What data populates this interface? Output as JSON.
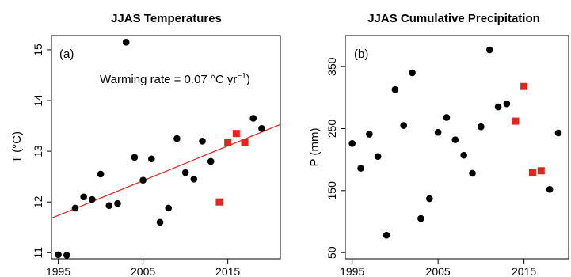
{
  "chart_data": [
    {
      "type": "scatter",
      "panel_label": "(a)",
      "title": "JJAS Temperatures",
      "xlabel": "",
      "ylabel": "T (°C)",
      "xlim": [
        1994.2,
        2021.2
      ],
      "ylim": [
        10.88,
        15.28
      ],
      "xticks": [
        1995,
        2005,
        2015
      ],
      "yticks": [
        11,
        12,
        13,
        14,
        15
      ],
      "annotation": {
        "text": "Warming rate = 0.07 °C yr",
        "superscript": "−1",
        "suffix": ")"
      },
      "trend_line": {
        "color": "#e8221c",
        "x": [
          1994.2,
          2021.2
        ],
        "y": [
          11.68,
          13.53
        ]
      },
      "series": [
        {
          "color": "#000000",
          "marker": "circle",
          "points": [
            [
              1995,
              10.96
            ],
            [
              1996,
              10.95
            ],
            [
              1997,
              11.88
            ],
            [
              1998,
              12.1
            ],
            [
              1999,
              12.05
            ],
            [
              2000,
              12.55
            ],
            [
              2001,
              11.93
            ],
            [
              2002,
              11.97
            ],
            [
              2003,
              15.15
            ],
            [
              2004,
              12.88
            ],
            [
              2005,
              12.43
            ],
            [
              2006,
              12.85
            ],
            [
              2007,
              11.6
            ],
            [
              2008,
              11.88
            ],
            [
              2009,
              13.25
            ],
            [
              2010,
              12.58
            ],
            [
              2011,
              12.45
            ],
            [
              2012,
              13.2
            ],
            [
              2013,
              12.8
            ],
            [
              2018,
              13.65
            ],
            [
              2019,
              13.45
            ]
          ]
        },
        {
          "color": "#e8221c",
          "marker": "square",
          "points": [
            [
              2014,
              12.0
            ],
            [
              2015,
              13.18
            ],
            [
              2016,
              13.35
            ],
            [
              2017,
              13.18
            ]
          ]
        }
      ]
    },
    {
      "type": "scatter",
      "panel_label": "(b)",
      "title": "JJAS Cumulative Precipitation",
      "xlabel": "",
      "ylabel": "P (mm)",
      "xlim": [
        1994.2,
        2020.2
      ],
      "ylim": [
        40,
        400
      ],
      "xticks": [
        1995,
        2005,
        2015
      ],
      "yticks": [
        50,
        150,
        250,
        350
      ],
      "series": [
        {
          "color": "#000000",
          "marker": "circle",
          "points": [
            [
              1995,
              226
            ],
            [
              1996,
              186
            ],
            [
              1997,
              241
            ],
            [
              1998,
              205
            ],
            [
              1999,
              78
            ],
            [
              2000,
              313
            ],
            [
              2001,
              255
            ],
            [
              2002,
              340
            ],
            [
              2003,
              105
            ],
            [
              2004,
              137
            ],
            [
              2005,
              244
            ],
            [
              2006,
              268
            ],
            [
              2007,
              232
            ],
            [
              2008,
              207
            ],
            [
              2009,
              178
            ],
            [
              2010,
              253
            ],
            [
              2011,
              377
            ],
            [
              2012,
              285
            ],
            [
              2013,
              290
            ],
            [
              2018,
              152
            ],
            [
              2019,
              243
            ]
          ]
        },
        {
          "color": "#e8221c",
          "marker": "square",
          "points": [
            [
              2014,
              262
            ],
            [
              2015,
              318
            ],
            [
              2016,
              179
            ],
            [
              2017,
              182
            ]
          ]
        }
      ]
    }
  ]
}
